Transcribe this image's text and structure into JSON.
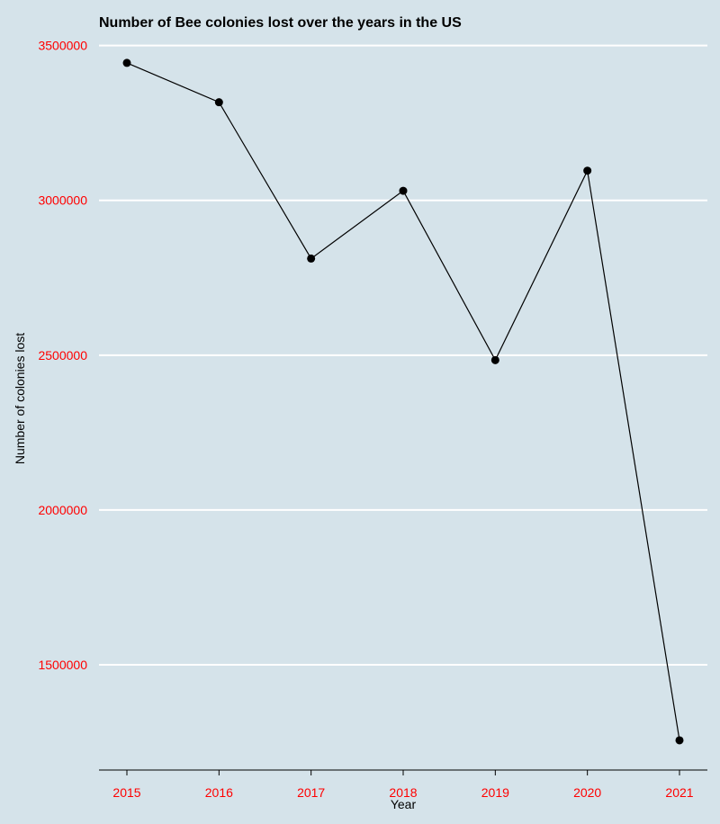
{
  "chart_data": {
    "type": "line",
    "title": "Number of Bee colonies lost over the years in the US",
    "xlabel": "Year",
    "ylabel": "Number of colonies lost",
    "x": [
      "2015",
      "2016",
      "2017",
      "2018",
      "2019",
      "2020",
      "2021"
    ],
    "series": [
      {
        "values": [
          3444000,
          3317000,
          2812000,
          3031000,
          2484000,
          3096000,
          1256000
        ]
      }
    ],
    "yticks": [
      1500000,
      2000000,
      2500000,
      3000000,
      3500000
    ],
    "ytick_labels": [
      "1500000",
      "2000000",
      "2500000",
      "3000000",
      "3500000"
    ],
    "ylim": [
      1160000,
      3560000
    ],
    "grid": "horizontal",
    "legend": "none",
    "colors": {
      "background": "#d5e3ea",
      "grid": "#ffffff",
      "line": "#000000",
      "point": "#000000",
      "tick_label": "#ff0000",
      "text": "#000000"
    }
  }
}
